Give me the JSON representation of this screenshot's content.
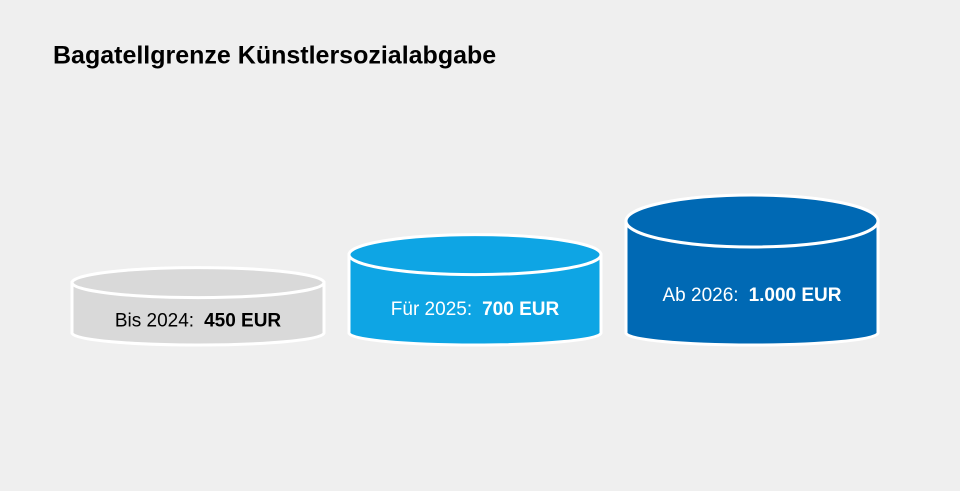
{
  "chart_data": {
    "type": "cylinder",
    "title": "Bagatellgrenze Künstlersozialabgabe",
    "categories": [
      "Bis 2024:",
      "Für 2025:",
      "Ab 2026:"
    ],
    "values": [
      450,
      700,
      1000
    ],
    "value_labels": [
      "450 EUR",
      "700 EUR",
      "1.000 EUR"
    ],
    "colors": [
      "#d9d9d9",
      "#0ea5e4",
      "#0069b4"
    ],
    "label_colors": [
      "#000000",
      "#ffffff",
      "#ffffff"
    ]
  }
}
